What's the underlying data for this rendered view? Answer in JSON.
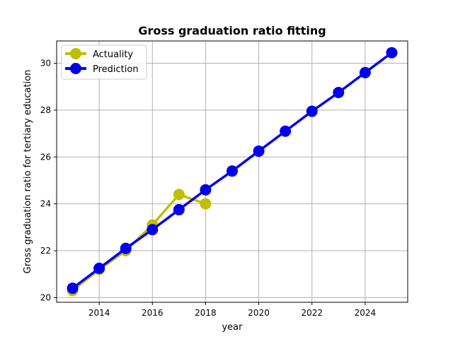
{
  "chart_data": {
    "type": "line",
    "title": "Gross graduation ratio fitting",
    "xlabel": "year",
    "ylabel": "Gross graduation ratio for tertiary education",
    "xlim": [
      2012.4,
      2025.6
    ],
    "ylim": [
      19.8,
      30.95
    ],
    "xticks": [
      2014,
      2016,
      2018,
      2020,
      2022,
      2024
    ],
    "yticks": [
      20,
      22,
      24,
      26,
      28,
      30
    ],
    "grid": true,
    "legend_position": "upper-left",
    "series": [
      {
        "name": "Actuality",
        "color": "#bfbf00",
        "x": [
          2013,
          2014,
          2015,
          2016,
          2017,
          2018
        ],
        "values": [
          20.3,
          21.2,
          22.0,
          23.1,
          24.4,
          24.0
        ]
      },
      {
        "name": "Prediction",
        "color": "#0000ee",
        "x": [
          2013,
          2014,
          2015,
          2016,
          2017,
          2018,
          2019,
          2020,
          2021,
          2022,
          2023,
          2024,
          2025
        ],
        "values": [
          20.4,
          21.25,
          22.1,
          22.9,
          23.75,
          24.6,
          25.4,
          26.25,
          27.1,
          27.95,
          28.75,
          29.6,
          30.45
        ]
      }
    ]
  }
}
